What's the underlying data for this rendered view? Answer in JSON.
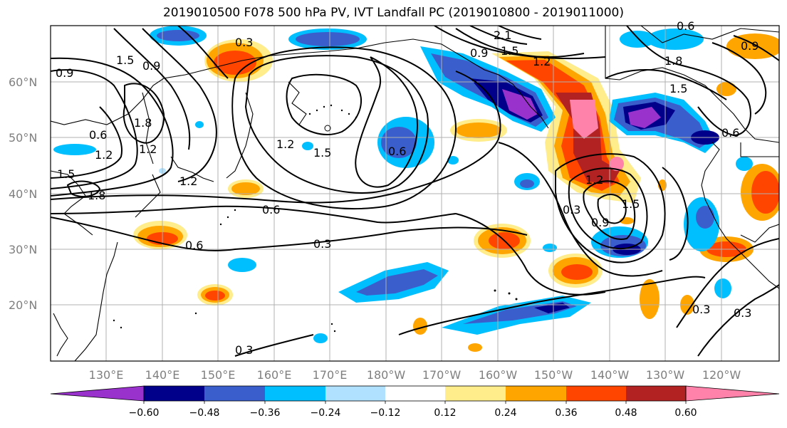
{
  "title": "2019010500 F078 500 hPa PV, IVT Landfall PC (2019010800 - 2019011000)",
  "map": {
    "lat_labels": [
      "60°N",
      "50°N",
      "40°N",
      "30°N",
      "20°N"
    ],
    "lon_labels": [
      "130°E",
      "140°E",
      "150°E",
      "160°E",
      "170°E",
      "180°W",
      "170°W",
      "160°W",
      "150°W",
      "140°W",
      "130°W",
      "120°W"
    ],
    "contour_labels": [
      "0.3",
      "0.6",
      "0.9",
      "1.2",
      "1.5",
      "1.8",
      "2.1"
    ],
    "gridlines": true,
    "coastlines": true
  },
  "colorbar": {
    "ticks": [
      "−0.60",
      "−0.48",
      "−0.36",
      "−0.24",
      "−0.12",
      "0.12",
      "0.24",
      "0.36",
      "0.48",
      "0.60"
    ],
    "colors": [
      "#9932cc",
      "#00008b",
      "#3a5fcd",
      "#00bfff",
      "#b0e2ff",
      "#ffffff",
      "#ffec8b",
      "#ffa500",
      "#ff4500",
      "#b22222",
      "#ff82ab"
    ],
    "extend": "both"
  }
}
